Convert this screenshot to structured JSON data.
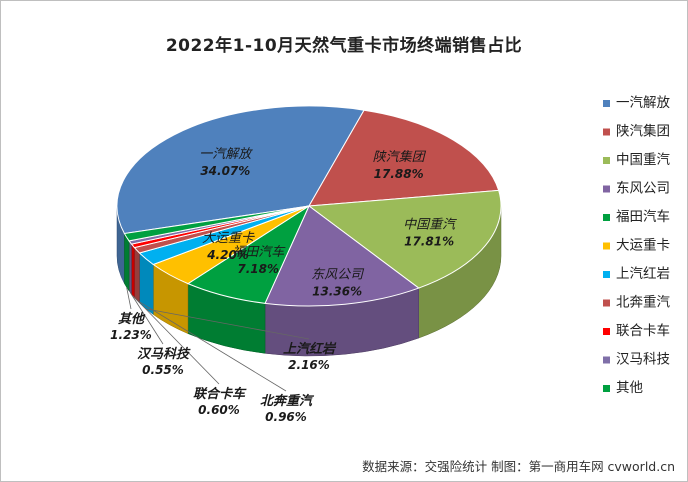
{
  "chart_data": {
    "type": "pie",
    "title": "2022年1-10月天然气重卡市场终端销售占比",
    "slices": [
      {
        "name": "一汽解放",
        "label": "34.07%",
        "value": 34.07,
        "color": "#4F81BD"
      },
      {
        "name": "陕汽集团",
        "label": "17.88%",
        "value": 17.88,
        "color": "#C0504D"
      },
      {
        "name": "中国重汽",
        "label": "17.81%",
        "value": 17.81,
        "color": "#9BBB59"
      },
      {
        "name": "东风公司",
        "label": "13.36%",
        "value": 13.36,
        "color": "#8064A2"
      },
      {
        "name": "福田汽车",
        "label": "7.18%",
        "value": 7.18,
        "color": "#00A040"
      },
      {
        "name": "大运重卡",
        "label": "4.20%",
        "value": 4.2,
        "color": "#FFC000"
      },
      {
        "name": "上汽红岩",
        "label": "2.16%",
        "value": 2.16,
        "color": "#00B0F0"
      },
      {
        "name": "北奔重汽",
        "label": "0.96%",
        "value": 0.96,
        "color": "#C0504D"
      },
      {
        "name": "联合卡车",
        "label": "0.60%",
        "value": 0.6,
        "color": "#FF0000"
      },
      {
        "name": "汉马科技",
        "label": "0.55%",
        "value": 0.55,
        "color": "#7F6FA8"
      },
      {
        "name": "其他",
        "label": "1.23%",
        "value": 1.23,
        "color": "#00A040"
      }
    ],
    "legend_position": "right"
  },
  "source_note": "数据来源：交强险统计  制图：第一商用车网 cvworld.cn"
}
